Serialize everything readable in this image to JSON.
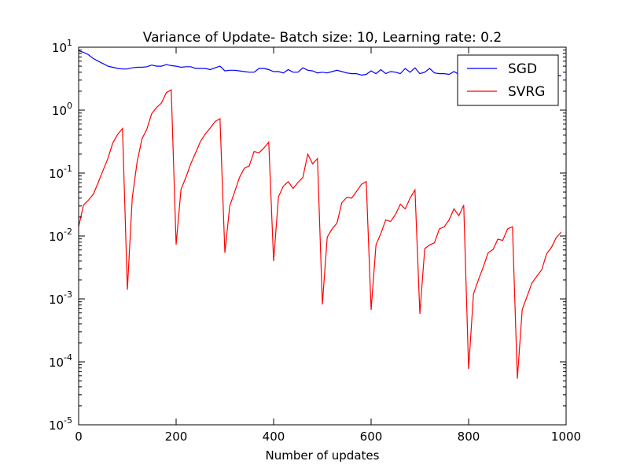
{
  "chart_data": {
    "type": "line",
    "title": "Variance of Update- Batch size: 10, Learning rate: 0.2",
    "xlabel": "Number of updates",
    "ylabel": "",
    "xlim": [
      0,
      1000
    ],
    "ylim": [
      1e-05,
      10
    ],
    "yscale": "log",
    "grid": false,
    "legend_position": "top-right",
    "x_ticks": [
      {
        "value": 0,
        "label": "0"
      },
      {
        "value": 200,
        "label": "200"
      },
      {
        "value": 400,
        "label": "400"
      },
      {
        "value": 600,
        "label": "600"
      },
      {
        "value": 800,
        "label": "800"
      },
      {
        "value": 1000,
        "label": "1000"
      }
    ],
    "y_ticks": [
      {
        "exp": 1,
        "base": "10",
        "sup": "1"
      },
      {
        "exp": 0,
        "base": "10",
        "sup": "0"
      },
      {
        "exp": -1,
        "base": "10",
        "sup": "-1"
      },
      {
        "exp": -2,
        "base": "10",
        "sup": "-2"
      },
      {
        "exp": -3,
        "base": "10",
        "sup": "-3"
      },
      {
        "exp": -4,
        "base": "10",
        "sup": "-4"
      },
      {
        "exp": -5,
        "base": "10",
        "sup": "-5"
      }
    ],
    "series": [
      {
        "name": "SGD",
        "color": "#0000ff",
        "x": [
          0,
          10,
          20,
          30,
          40,
          50,
          60,
          70,
          80,
          90,
          100,
          110,
          120,
          130,
          140,
          150,
          160,
          170,
          180,
          190,
          200,
          210,
          220,
          230,
          240,
          250,
          260,
          270,
          280,
          290,
          300,
          310,
          320,
          330,
          340,
          350,
          360,
          370,
          380,
          390,
          400,
          410,
          420,
          430,
          440,
          450,
          460,
          470,
          480,
          490,
          500,
          510,
          520,
          530,
          540,
          550,
          560,
          570,
          580,
          590,
          600,
          610,
          620,
          630,
          640,
          650,
          660,
          670,
          680,
          690,
          700,
          710,
          720,
          730,
          740,
          750,
          760,
          770,
          780,
          790,
          800,
          810,
          820,
          830,
          840,
          850,
          860,
          870,
          880,
          890,
          900,
          910,
          920,
          930,
          940,
          950,
          960,
          970,
          980,
          990
        ],
        "y": [
          8.8,
          8.3,
          7.6,
          6.6,
          6.0,
          5.5,
          5.0,
          4.8,
          4.6,
          4.5,
          4.5,
          4.7,
          4.8,
          4.8,
          4.9,
          5.2,
          5.0,
          5.0,
          5.3,
          5.1,
          5.0,
          4.8,
          4.9,
          4.9,
          4.6,
          4.6,
          4.6,
          4.4,
          4.7,
          5.0,
          4.2,
          4.3,
          4.3,
          4.2,
          4.1,
          4.0,
          4.0,
          4.6,
          4.6,
          4.4,
          4.1,
          4.1,
          3.9,
          4.4,
          4.0,
          4.0,
          4.7,
          4.3,
          4.2,
          3.9,
          4.0,
          3.9,
          4.1,
          4.3,
          4.1,
          3.9,
          3.8,
          3.8,
          3.6,
          3.7,
          4.2,
          3.8,
          4.4,
          3.8,
          4.1,
          4.0,
          3.8,
          4.6,
          4.0,
          4.7,
          3.8,
          4.0,
          4.6,
          3.9,
          3.8,
          3.8,
          3.7,
          4.1,
          3.7,
          3.8,
          4.0,
          4.3,
          3.9,
          3.8,
          3.7,
          3.8,
          3.8,
          3.7,
          3.7,
          3.6,
          3.7,
          3.8,
          3.8,
          3.7,
          3.6,
          3.7,
          3.6,
          3.7,
          3.6,
          3.5
        ]
      },
      {
        "name": "SVRG",
        "color": "#ff0000",
        "x": [
          0,
          10,
          20,
          30,
          40,
          50,
          60,
          70,
          80,
          90,
          100,
          110,
          120,
          130,
          140,
          150,
          160,
          170,
          180,
          190,
          200,
          210,
          220,
          230,
          240,
          250,
          260,
          270,
          280,
          290,
          300,
          310,
          320,
          330,
          340,
          350,
          360,
          370,
          380,
          390,
          400,
          410,
          420,
          430,
          440,
          450,
          460,
          470,
          480,
          490,
          500,
          510,
          520,
          530,
          540,
          550,
          560,
          570,
          580,
          590,
          600,
          610,
          620,
          630,
          640,
          650,
          660,
          670,
          680,
          690,
          700,
          710,
          720,
          730,
          740,
          750,
          760,
          770,
          780,
          790,
          800,
          810,
          820,
          830,
          840,
          850,
          860,
          870,
          880,
          890,
          900,
          910,
          920,
          930,
          940,
          950,
          960,
          970,
          980,
          990
        ],
        "y": [
          0.014,
          0.031,
          0.037,
          0.046,
          0.07,
          0.11,
          0.17,
          0.3,
          0.41,
          0.51,
          0.0014,
          0.04,
          0.15,
          0.35,
          0.5,
          0.88,
          1.1,
          1.3,
          1.9,
          2.1,
          0.0073,
          0.055,
          0.085,
          0.14,
          0.21,
          0.32,
          0.42,
          0.52,
          0.66,
          0.73,
          0.0054,
          0.03,
          0.05,
          0.085,
          0.12,
          0.13,
          0.22,
          0.21,
          0.25,
          0.31,
          0.004,
          0.042,
          0.062,
          0.073,
          0.057,
          0.071,
          0.085,
          0.2,
          0.14,
          0.17,
          0.00082,
          0.0096,
          0.013,
          0.016,
          0.034,
          0.041,
          0.04,
          0.051,
          0.066,
          0.073,
          0.00067,
          0.0072,
          0.011,
          0.018,
          0.017,
          0.022,
          0.032,
          0.027,
          0.04,
          0.054,
          0.00058,
          0.0063,
          0.0072,
          0.0078,
          0.013,
          0.014,
          0.018,
          0.027,
          0.021,
          0.031,
          7.7e-05,
          0.0012,
          0.002,
          0.0032,
          0.0054,
          0.0061,
          0.0089,
          0.0085,
          0.013,
          0.014,
          5.4e-05,
          0.00068,
          0.0011,
          0.0018,
          0.0023,
          0.0029,
          0.0052,
          0.0066,
          0.0095,
          0.0115
        ]
      }
    ]
  }
}
